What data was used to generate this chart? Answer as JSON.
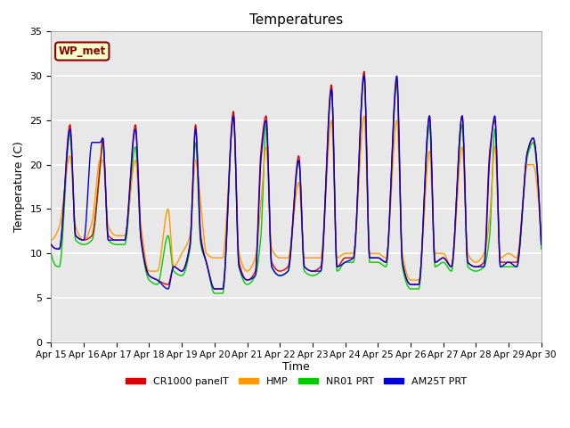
{
  "title": "Temperatures",
  "ylabel": "Temperature (C)",
  "xlabel": "Time",
  "ylim": [
    0,
    35
  ],
  "station_label": "WP_met",
  "plot_bg": "#e8e8e8",
  "fig_bg": "#ffffff",
  "grid_color": "#ffffff",
  "x_tick_labels": [
    "Apr 15",
    "Apr 16",
    "Apr 17",
    "Apr 18",
    "Apr 19",
    "Apr 20",
    "Apr 21",
    "Apr 22",
    "Apr 23",
    "Apr 24",
    "Apr 25",
    "Apr 26",
    "Apr 27",
    "Apr 28",
    "Apr 29",
    "Apr 30"
  ],
  "series": {
    "CR1000 panelT": {
      "color": "#dd0000",
      "lw": 1.0,
      "zorder": 3
    },
    "HMP": {
      "color": "#ff9900",
      "lw": 1.0,
      "zorder": 2
    },
    "NR01 PRT": {
      "color": "#00cc00",
      "lw": 1.0,
      "zorder": 2
    },
    "AM25T PRT": {
      "color": "#0000dd",
      "lw": 1.0,
      "zorder": 4
    }
  },
  "keypoints": {
    "t": [
      0.0,
      0.25,
      0.58,
      0.75,
      1.0,
      1.25,
      1.5,
      1.58,
      1.75,
      2.0,
      2.25,
      2.58,
      2.75,
      3.0,
      3.25,
      3.58,
      3.75,
      4.0,
      4.25,
      4.42,
      4.58,
      4.75,
      5.0,
      5.25,
      5.58,
      5.75,
      6.0,
      6.25,
      6.42,
      6.58,
      6.75,
      7.0,
      7.25,
      7.58,
      7.75,
      8.0,
      8.25,
      8.58,
      8.75,
      9.0,
      9.25,
      9.58,
      9.75,
      10.0,
      10.25,
      10.58,
      10.75,
      11.0,
      11.25,
      11.58,
      11.75,
      12.0,
      12.25,
      12.58,
      12.75,
      13.0,
      13.25,
      13.42,
      13.58,
      13.75,
      14.0,
      14.25,
      14.58,
      14.75,
      15.0
    ],
    "v_red": [
      11.0,
      10.5,
      24.5,
      12.0,
      11.5,
      12.0,
      20.0,
      23.0,
      12.0,
      11.5,
      11.5,
      24.5,
      12.0,
      7.5,
      7.0,
      6.5,
      8.5,
      8.0,
      11.0,
      24.5,
      12.0,
      9.0,
      6.0,
      6.0,
      26.0,
      9.0,
      7.0,
      8.0,
      21.5,
      25.5,
      9.0,
      8.0,
      8.5,
      21.0,
      8.5,
      8.0,
      8.5,
      29.0,
      8.5,
      9.5,
      9.5,
      30.5,
      9.5,
      9.5,
      9.0,
      29.5,
      9.0,
      6.5,
      6.5,
      25.5,
      9.0,
      9.5,
      8.5,
      25.5,
      9.0,
      8.5,
      9.0,
      21.5,
      25.0,
      9.0,
      9.0,
      9.0,
      21.5,
      23.0,
      11.0
    ],
    "v_ora": [
      11.5,
      13.0,
      21.0,
      13.0,
      11.5,
      13.5,
      20.5,
      20.5,
      13.0,
      12.0,
      12.0,
      20.5,
      13.0,
      8.0,
      8.0,
      15.0,
      8.5,
      10.0,
      12.0,
      20.5,
      15.5,
      10.0,
      9.5,
      9.5,
      25.0,
      10.0,
      8.0,
      9.5,
      15.5,
      22.0,
      10.5,
      9.5,
      9.5,
      18.0,
      9.5,
      9.5,
      9.5,
      25.0,
      9.5,
      10.0,
      10.0,
      25.5,
      10.0,
      10.0,
      9.5,
      25.0,
      10.0,
      7.0,
      7.0,
      21.5,
      10.0,
      10.0,
      8.5,
      22.0,
      10.0,
      9.0,
      10.0,
      14.0,
      22.0,
      9.5,
      10.0,
      9.5,
      20.0,
      20.0,
      11.5
    ],
    "v_grn": [
      10.0,
      8.5,
      23.5,
      11.5,
      11.0,
      11.5,
      19.5,
      22.5,
      11.5,
      11.0,
      11.0,
      22.0,
      11.5,
      7.0,
      6.5,
      12.0,
      8.0,
      7.5,
      10.5,
      22.5,
      11.0,
      9.0,
      5.5,
      5.5,
      25.5,
      8.5,
      6.5,
      7.5,
      12.0,
      24.5,
      8.5,
      7.5,
      8.0,
      20.5,
      8.0,
      7.5,
      8.0,
      28.5,
      8.0,
      9.0,
      9.0,
      30.0,
      9.0,
      9.0,
      8.5,
      29.0,
      8.5,
      6.0,
      6.0,
      24.5,
      8.5,
      9.0,
      8.0,
      24.5,
      8.5,
      8.0,
      8.5,
      12.0,
      24.0,
      8.5,
      8.5,
      8.5,
      21.0,
      22.5,
      10.5
    ],
    "v_blu": [
      11.0,
      10.5,
      24.0,
      12.0,
      11.5,
      22.5,
      22.5,
      23.0,
      11.5,
      11.5,
      11.5,
      24.0,
      11.5,
      7.5,
      7.0,
      6.0,
      8.5,
      8.0,
      11.0,
      24.0,
      11.5,
      9.0,
      6.0,
      6.0,
      25.5,
      8.5,
      7.0,
      7.5,
      20.5,
      25.0,
      8.5,
      7.5,
      8.0,
      20.5,
      8.5,
      8.0,
      8.0,
      28.5,
      8.5,
      9.0,
      9.5,
      30.0,
      9.5,
      9.5,
      9.0,
      30.0,
      9.0,
      6.5,
      6.5,
      25.5,
      9.0,
      9.5,
      8.5,
      25.5,
      9.0,
      8.5,
      8.5,
      20.5,
      25.5,
      8.5,
      9.0,
      8.5,
      21.5,
      23.0,
      11.0
    ]
  }
}
